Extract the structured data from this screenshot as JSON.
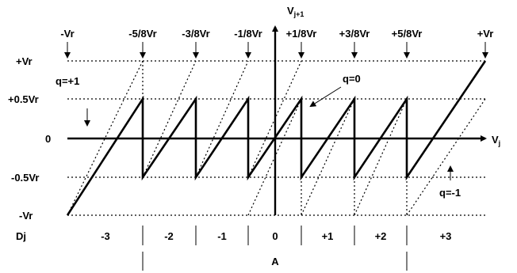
{
  "axes": {
    "y_label_main": "V",
    "y_label_sub": "j+1",
    "x_label_main": "V",
    "x_label_sub": "j"
  },
  "top_labels": [
    "-Vr",
    "-5/8Vr",
    "-3/8Vr",
    "-1/8Vr",
    "+1/8Vr",
    "+3/8Vr",
    "+5/8Vr",
    "+Vr"
  ],
  "y_ticks": [
    "+Vr",
    "+0.5Vr",
    "0",
    "-0.5Vr",
    "-Vr"
  ],
  "region_header": "Dj",
  "region_codes": [
    "-3",
    "-2",
    "-1",
    "0",
    "+1",
    "+2",
    "+3"
  ],
  "bottom_label": "A",
  "annotations": {
    "q_plus": "q=+1",
    "q_zero": "q=0",
    "q_minus": "q=-1"
  }
}
